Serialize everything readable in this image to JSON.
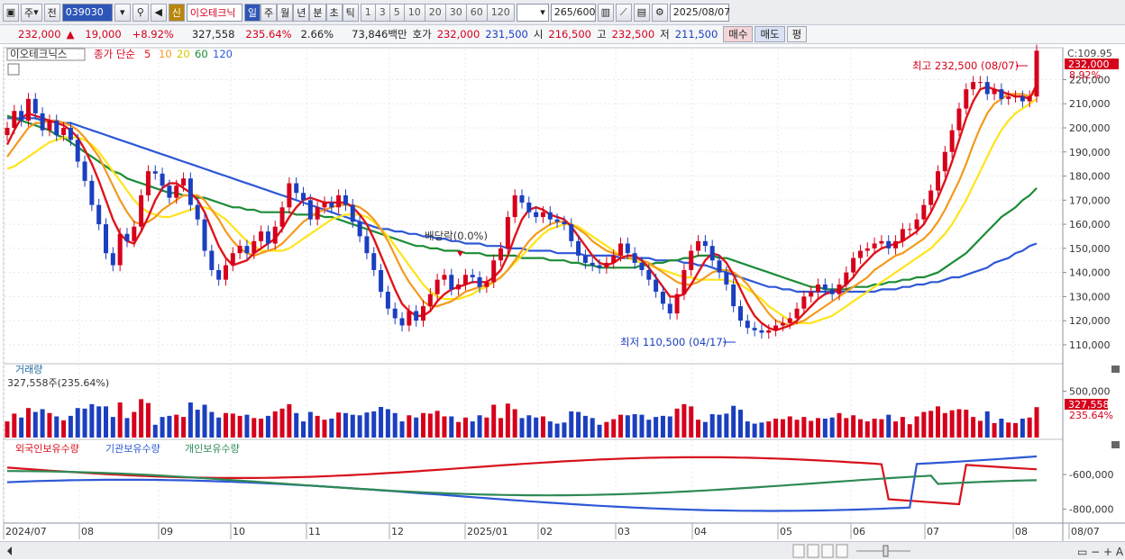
{
  "toolbar": {
    "market": "주",
    "prev": "전",
    "code": "039030",
    "stock_name": "이오테크닉",
    "badge": "신",
    "periods": [
      "일",
      "주",
      "월",
      "년",
      "분",
      "초",
      "틱"
    ],
    "active_period": "일",
    "intervals": [
      "1",
      "3",
      "5",
      "10",
      "20",
      "30",
      "60",
      "120"
    ],
    "count": "265",
    "count_max": "/600",
    "date": "2025/08/07"
  },
  "quote": {
    "price": "232,000",
    "arrow": "▲",
    "change": "19,000",
    "pct": "+8.92%",
    "volume": "327,558",
    "vol_ratio": "235.64%",
    "turnover": "2.66%",
    "amount": "73,846백만",
    "bid_label": "호가",
    "bid": "232,000",
    "ask": "231,500",
    "open_label": "시",
    "open": "216,500",
    "high_label": "고",
    "high": "232,500",
    "low_label": "저",
    "low": "211,500",
    "buy": "매수",
    "sell": "매도",
    "flat": "평"
  },
  "legend": {
    "name": "이오테크닉스",
    "ma_title": "종가 단순",
    "ma_periods": [
      "5",
      "10",
      "20",
      "60",
      "120"
    ],
    "ma_colors": [
      "#e0141a",
      "#f39a1d",
      "#ffe419",
      "#1c8c36",
      "#2e58d6"
    ]
  },
  "annotations": {
    "high": "최고 232,500 (08/07)",
    "low": "최저 110,500 (04/17)",
    "dividend": "배당락(0.0%)",
    "current_price_label": "232,000",
    "current_pct": "8.92%",
    "top_value": "C:109.95"
  },
  "volume_panel": {
    "title": "거래량",
    "value_label": "327,558주(235.64%)",
    "current": "327,558",
    "current_pct": "235.64%"
  },
  "holdings_panel": {
    "series": [
      "외국인보유수량",
      "기관보유수량",
      "개인보유수량"
    ],
    "colors": [
      "#d8111c",
      "#2e58d6",
      "#2e8a55"
    ]
  },
  "colors": {
    "up": "#d6001c",
    "down": "#1b3fbf",
    "grid": "#e8e8e8"
  },
  "chart_data": {
    "type": "candlestick",
    "price_ticks": [
      110000,
      120000,
      130000,
      140000,
      150000,
      160000,
      170000,
      180000,
      190000,
      200000,
      210000,
      220000
    ],
    "price_tick_labels": [
      "110,000",
      "120,000",
      "130,000",
      "140,000",
      "150,000",
      "160,000",
      "170,000",
      "180,000",
      "190,000",
      "200,000",
      "210,000",
      "220,000"
    ],
    "price_range": [
      104000,
      231000
    ],
    "volume_ticks": [
      500000
    ],
    "volume_tick_labels": [
      "500,000"
    ],
    "volume_max": 650000,
    "holdings_ticks": [
      -600000,
      -800000
    ],
    "holdings_tick_labels": [
      "-600,000",
      "-800,000"
    ],
    "x_labels": [
      "2024/07",
      "08",
      "09",
      "10",
      "11",
      "12",
      "2025/01",
      "02",
      "03",
      "04",
      "05",
      "06",
      "07",
      "08",
      "08/07"
    ],
    "close": [
      200000,
      207000,
      203000,
      212000,
      206000,
      199000,
      203000,
      197000,
      200000,
      195000,
      186000,
      178000,
      168000,
      160000,
      148000,
      143000,
      156000,
      153000,
      159000,
      172000,
      182000,
      181000,
      176000,
      171000,
      176000,
      179000,
      168000,
      162000,
      149000,
      141000,
      137000,
      143000,
      148000,
      151000,
      148000,
      153000,
      157000,
      152000,
      159000,
      167000,
      177000,
      173000,
      170000,
      162000,
      167000,
      169000,
      167000,
      172000,
      168000,
      161000,
      155000,
      148000,
      141000,
      132000,
      125000,
      121000,
      118000,
      124000,
      120000,
      126000,
      131000,
      137000,
      139000,
      133000,
      135000,
      139000,
      138000,
      134000,
      136000,
      145000,
      150000,
      163000,
      172000,
      169000,
      165000,
      163000,
      165000,
      162000,
      161000,
      160000,
      153000,
      147000,
      144000,
      143000,
      142000,
      144000,
      147000,
      152000,
      148000,
      144000,
      141000,
      137000,
      132000,
      127000,
      123000,
      131000,
      141000,
      149000,
      153000,
      151000,
      145000,
      140000,
      135000,
      126000,
      120000,
      117000,
      116000,
      115000,
      116000,
      118000,
      119000,
      121000,
      125000,
      130000,
      132000,
      135000,
      133000,
      131000,
      135000,
      140000,
      146000,
      149000,
      150000,
      152000,
      153000,
      150000,
      153000,
      158000,
      158000,
      162000,
      168000,
      174000,
      182000,
      190000,
      199000,
      208000,
      216000,
      219000,
      219000,
      214000,
      216000,
      212000,
      213000,
      213000,
      211000,
      213000,
      232000
    ],
    "ma5": [
      193000,
      199000,
      204000,
      206000,
      205000,
      204000,
      203000,
      202000,
      201000,
      199000,
      196000,
      191000,
      185000,
      178000,
      170000,
      162000,
      156000,
      153000,
      152000,
      157000,
      163000,
      170000,
      175000,
      177000,
      177000,
      175000,
      173000,
      170000,
      165000,
      158000,
      151000,
      146000,
      143000,
      144000,
      145000,
      148000,
      150000,
      152000,
      154000,
      158000,
      163000,
      167000,
      170000,
      171000,
      170000,
      169000,
      169000,
      169000,
      169000,
      167000,
      164000,
      160000,
      154000,
      147000,
      140000,
      133000,
      127000,
      124000,
      122000,
      122000,
      124000,
      128000,
      131000,
      133000,
      134000,
      135000,
      136000,
      136000,
      136000,
      138000,
      141000,
      147000,
      155000,
      162000,
      166000,
      167000,
      166000,
      164000,
      163000,
      162000,
      159000,
      155000,
      151000,
      147000,
      144000,
      143000,
      144000,
      146000,
      147000,
      147000,
      145000,
      142000,
      138000,
      134000,
      130000,
      130000,
      131000,
      135000,
      140000,
      145000,
      148000,
      147000,
      144000,
      139000,
      133000,
      127000,
      122000,
      119000,
      117000,
      116000,
      117000,
      118000,
      120000,
      123000,
      126000,
      129000,
      131000,
      132000,
      133000,
      135000,
      138000,
      142000,
      145000,
      148000,
      150000,
      151000,
      152000,
      153000,
      155000,
      157000,
      160000,
      165000,
      171000,
      178000,
      186000,
      195000,
      204000,
      211000,
      216000,
      217000,
      216000,
      215000,
      214000,
      213000,
      213000,
      212000,
      218000
    ],
    "ma10": [
      188000,
      192000,
      196000,
      200000,
      202000,
      202000,
      203000,
      203000,
      202000,
      201000,
      199000,
      196000,
      192000,
      188000,
      182000,
      176000,
      170000,
      165000,
      161000,
      160000,
      161000,
      163000,
      166000,
      168000,
      170000,
      172000,
      172000,
      172000,
      170000,
      166000,
      162000,
      157000,
      153000,
      150000,
      148000,
      147000,
      148000,
      149000,
      150000,
      152000,
      155000,
      158000,
      161000,
      163000,
      165000,
      166000,
      167000,
      168000,
      168000,
      168000,
      167000,
      165000,
      162000,
      158000,
      153000,
      147000,
      141000,
      136000,
      132000,
      128000,
      126000,
      126000,
      127000,
      128000,
      130000,
      132000,
      133000,
      134000,
      135000,
      136000,
      138000,
      141000,
      145000,
      149000,
      153000,
      156000,
      158000,
      160000,
      161000,
      161000,
      160000,
      158000,
      156000,
      153000,
      151000,
      149000,
      148000,
      147000,
      146000,
      146000,
      145000,
      144000,
      142000,
      140000,
      138000,
      136000,
      135000,
      135000,
      136000,
      138000,
      140000,
      141000,
      141000,
      140000,
      138000,
      135000,
      131000,
      127000,
      123000,
      120000,
      119000,
      118000,
      119000,
      120000,
      122000,
      124000,
      126000,
      128000,
      130000,
      132000,
      134000,
      136000,
      138000,
      141000,
      143000,
      145000,
      147000,
      148000,
      150000,
      152000,
      154000,
      157000,
      161000,
      166000,
      172000,
      178000,
      185000,
      193000,
      200000,
      206000,
      210000,
      212000,
      214000,
      214000,
      214000,
      213000,
      215000
    ],
    "ma20": [
      183000,
      184000,
      186000,
      188000,
      190000,
      192000,
      194000,
      195000,
      196000,
      196000,
      196000,
      195000,
      193000,
      190000,
      186000,
      182000,
      178000,
      174000,
      170000,
      167000,
      165000,
      164000,
      163000,
      163000,
      164000,
      165000,
      166000,
      167000,
      167000,
      166000,
      164000,
      162000,
      159000,
      156000,
      153000,
      151000,
      149000,
      149000,
      149000,
      149000,
      150000,
      152000,
      154000,
      156000,
      158000,
      160000,
      162000,
      163000,
      164000,
      164000,
      164000,
      163000,
      161000,
      158000,
      155000,
      151000,
      147000,
      143000,
      139000,
      135000,
      132000,
      130000,
      129000,
      129000,
      129000,
      130000,
      131000,
      133000,
      134000,
      136000,
      138000,
      141000,
      144000,
      147000,
      150000,
      153000,
      156000,
      158000,
      159000,
      160000,
      160000,
      159000,
      157000,
      155000,
      153000,
      151000,
      149000,
      147000,
      146000,
      145000,
      144000,
      143000,
      142000,
      141000,
      140000,
      139000,
      138000,
      138000,
      137000,
      137000,
      137000,
      137000,
      137000,
      136000,
      135000,
      133000,
      131000,
      129000,
      126000,
      124000,
      122000,
      120000,
      119000,
      119000,
      119000,
      120000,
      121000,
      122000,
      124000,
      126000,
      128000,
      130000,
      132000,
      134000,
      136000,
      138000,
      140000,
      142000,
      144000,
      146000,
      148000,
      150000,
      153000,
      156000,
      160000,
      165000,
      170000,
      176000,
      182000,
      188000,
      194000,
      199000,
      203000,
      206000,
      208000,
      210000,
      212000
    ],
    "ma60": [
      205000,
      204000,
      203000,
      202000,
      201000,
      200000,
      199000,
      197000,
      196000,
      194000,
      192000,
      190000,
      188000,
      186000,
      184000,
      182000,
      181000,
      179000,
      178000,
      177000,
      176000,
      175000,
      174000,
      173000,
      173000,
      172000,
      172000,
      171000,
      171000,
      170000,
      169000,
      168000,
      167000,
      167000,
      166000,
      166000,
      165000,
      165000,
      165000,
      165000,
      165000,
      164000,
      164000,
      164000,
      164000,
      163000,
      163000,
      162000,
      161000,
      160000,
      159000,
      158000,
      157000,
      156000,
      155000,
      154000,
      153000,
      152000,
      151000,
      151000,
      150000,
      150000,
      149000,
      149000,
      149000,
      148000,
      148000,
      148000,
      147000,
      147000,
      147000,
      147000,
      147000,
      146000,
      146000,
      146000,
      146000,
      145000,
      145000,
      145000,
      144000,
      144000,
      143000,
      143000,
      142000,
      142000,
      142000,
      142000,
      142000,
      142000,
      143000,
      143000,
      144000,
      144000,
      145000,
      145000,
      146000,
      146000,
      147000,
      147000,
      147000,
      146000,
      146000,
      145000,
      144000,
      143000,
      142000,
      141000,
      140000,
      139000,
      138000,
      137000,
      136000,
      135000,
      134000,
      134000,
      133000,
      133000,
      133000,
      133000,
      134000,
      134000,
      134000,
      135000,
      135000,
      136000,
      136000,
      137000,
      137000,
      138000,
      138000,
      139000,
      140000,
      142000,
      144000,
      146000,
      148000,
      151000,
      154000,
      157000,
      160000,
      163000,
      165000,
      167000,
      170000,
      172000,
      175000
    ],
    "ma120": [
      204000,
      204000,
      204000,
      204000,
      204000,
      203000,
      203000,
      203000,
      202000,
      202000,
      201000,
      200000,
      199000,
      198000,
      197000,
      196000,
      195000,
      194000,
      193000,
      192000,
      191000,
      190000,
      189000,
      188000,
      187000,
      186000,
      185000,
      184000,
      183000,
      182000,
      181000,
      180000,
      179000,
      178000,
      177000,
      176000,
      175000,
      174000,
      173000,
      172000,
      171000,
      170000,
      169000,
      168000,
      167000,
      166000,
      165000,
      164000,
      163000,
      162000,
      161000,
      160000,
      159000,
      158000,
      158000,
      157000,
      157000,
      156000,
      156000,
      155000,
      155000,
      154000,
      154000,
      153000,
      153000,
      152000,
      152000,
      152000,
      151000,
      151000,
      151000,
      150000,
      150000,
      150000,
      149000,
      149000,
      149000,
      149000,
      148000,
      148000,
      148000,
      148000,
      147000,
      147000,
      147000,
      147000,
      147000,
      146000,
      146000,
      146000,
      146000,
      146000,
      145000,
      145000,
      145000,
      145000,
      144000,
      144000,
      143000,
      143000,
      142000,
      141000,
      140000,
      139000,
      138000,
      137000,
      136000,
      135000,
      134000,
      134000,
      133000,
      133000,
      132000,
      132000,
      132000,
      132000,
      132000,
      132000,
      132000,
      132000,
      132000,
      132000,
      132000,
      132000,
      133000,
      133000,
      133000,
      134000,
      134000,
      135000,
      135000,
      136000,
      136000,
      137000,
      138000,
      138000,
      139000,
      140000,
      141000,
      142000,
      144000,
      145000,
      146000,
      148000,
      149000,
      151000,
      152000
    ]
  }
}
